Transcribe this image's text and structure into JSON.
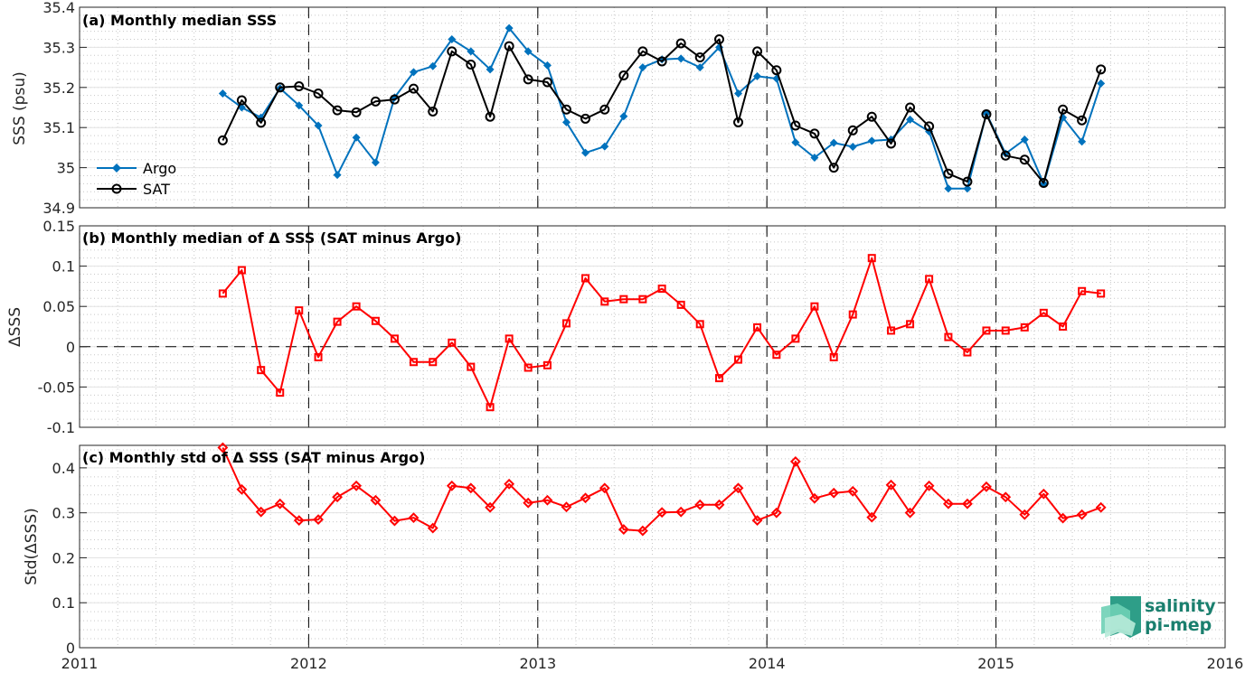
{
  "chart_data": [
    {
      "type": "line",
      "title": "(a) Monthly median SSS",
      "ylabel": "SSS (psu)",
      "xlim": [
        2011,
        2016
      ],
      "ylim": [
        34.9,
        35.4
      ],
      "yticks": [
        34.9,
        35,
        35.1,
        35.2,
        35.3,
        35.4
      ],
      "ytick_labels": [
        "34.9",
        "35",
        "35.1",
        "35.2",
        "35.3",
        "35.4"
      ],
      "grid": true,
      "legend_position": "lower-left",
      "x": [
        2011.625,
        2011.708,
        2011.792,
        2011.875,
        2011.958,
        2012.042,
        2012.125,
        2012.208,
        2012.292,
        2012.375,
        2012.458,
        2012.542,
        2012.625,
        2012.708,
        2012.792,
        2012.875,
        2012.958,
        2013.042,
        2013.125,
        2013.208,
        2013.292,
        2013.375,
        2013.458,
        2013.542,
        2013.625,
        2013.708,
        2013.792,
        2013.875,
        2013.958,
        2014.042,
        2014.125,
        2014.208,
        2014.292,
        2014.375,
        2014.458,
        2014.542,
        2014.625,
        2014.708,
        2014.792,
        2014.875,
        2014.958,
        2015.042,
        2015.125,
        2015.208,
        2015.292,
        2015.375,
        2015.458
      ],
      "series": [
        {
          "name": "Argo",
          "color": "#0072bd",
          "marker": "diamond-filled",
          "values": [
            35.185,
            35.15,
            35.125,
            35.198,
            35.155,
            35.105,
            34.982,
            35.075,
            35.013,
            35.175,
            35.238,
            35.253,
            35.32,
            35.29,
            35.245,
            35.348,
            35.29,
            35.255,
            35.113,
            35.037,
            35.053,
            35.128,
            35.25,
            35.27,
            35.272,
            35.25,
            35.3,
            35.185,
            35.228,
            35.222,
            35.063,
            35.025,
            35.062,
            35.052,
            35.067,
            35.07,
            35.12,
            35.09,
            34.948,
            34.948,
            35.135,
            35.035,
            35.07,
            34.96,
            35.125,
            35.065,
            35.21
          ]
        },
        {
          "name": "SAT",
          "color": "#000000",
          "marker": "circle-open",
          "values": [
            35.068,
            35.168,
            35.112,
            35.2,
            35.203,
            35.185,
            35.143,
            35.138,
            35.165,
            35.17,
            35.197,
            35.14,
            35.29,
            35.257,
            35.127,
            35.303,
            35.22,
            35.213,
            35.145,
            35.122,
            35.145,
            35.23,
            35.29,
            35.265,
            35.31,
            35.275,
            35.32,
            35.113,
            35.29,
            35.243,
            35.105,
            35.085,
            35.0,
            35.093,
            35.127,
            35.06,
            35.15,
            35.103,
            34.985,
            34.965,
            35.133,
            35.03,
            35.02,
            34.962,
            35.145,
            35.118,
            35.245
          ]
        }
      ]
    },
    {
      "type": "line",
      "title": "(b) Monthly median of Δ SSS (SAT minus Argo)",
      "ylabel": "ΔSSS",
      "xlim": [
        2011,
        2016
      ],
      "ylim": [
        -0.1,
        0.15
      ],
      "yticks": [
        -0.1,
        -0.05,
        0,
        0.05,
        0.1,
        0.15
      ],
      "ytick_labels": [
        "-0.1",
        "-0.05",
        "0",
        "0.05",
        "0.1",
        "0.15"
      ],
      "grid": true,
      "zero_line": true,
      "x": [
        2011.625,
        2011.708,
        2011.792,
        2011.875,
        2011.958,
        2012.042,
        2012.125,
        2012.208,
        2012.292,
        2012.375,
        2012.458,
        2012.542,
        2012.625,
        2012.708,
        2012.792,
        2012.875,
        2012.958,
        2013.042,
        2013.125,
        2013.208,
        2013.292,
        2013.375,
        2013.458,
        2013.542,
        2013.625,
        2013.708,
        2013.792,
        2013.875,
        2013.958,
        2014.042,
        2014.125,
        2014.208,
        2014.292,
        2014.375,
        2014.458,
        2014.542,
        2014.625,
        2014.708,
        2014.792,
        2014.875,
        2014.958,
        2015.042,
        2015.125,
        2015.208,
        2015.292,
        2015.375,
        2015.458
      ],
      "series": [
        {
          "color": "#ff0000",
          "marker": "square-open",
          "values": [
            0.066,
            0.095,
            -0.029,
            -0.057,
            0.045,
            -0.013,
            0.031,
            0.05,
            0.032,
            0.01,
            -0.019,
            -0.019,
            0.005,
            -0.025,
            -0.075,
            0.01,
            -0.026,
            -0.023,
            0.029,
            0.085,
            0.056,
            0.059,
            0.059,
            0.072,
            0.052,
            0.028,
            -0.039,
            -0.016,
            0.024,
            -0.01,
            0.01,
            0.05,
            -0.013,
            0.04,
            0.11,
            0.02,
            0.028,
            0.084,
            0.012,
            -0.007,
            0.02,
            0.02,
            0.024,
            0.042,
            0.025,
            0.069,
            0.066
          ]
        }
      ]
    },
    {
      "type": "line",
      "title": "(c) Monthly std of Δ SSS (SAT minus Argo)",
      "ylabel": "Std(ΔSSS)",
      "xlim": [
        2011,
        2016
      ],
      "ylim": [
        0,
        0.45
      ],
      "yticks": [
        0,
        0.1,
        0.2,
        0.3,
        0.4
      ],
      "ytick_labels": [
        "0",
        "0.1",
        "0.2",
        "0.3",
        "0.4"
      ],
      "xticks": [
        2011,
        2012,
        2013,
        2014,
        2015,
        2016
      ],
      "xtick_labels": [
        "2011",
        "2012",
        "2013",
        "2014",
        "2015",
        "2016"
      ],
      "grid": true,
      "x": [
        2011.625,
        2011.708,
        2011.792,
        2011.875,
        2011.958,
        2012.042,
        2012.125,
        2012.208,
        2012.292,
        2012.375,
        2012.458,
        2012.542,
        2012.625,
        2012.708,
        2012.792,
        2012.875,
        2012.958,
        2013.042,
        2013.125,
        2013.208,
        2013.292,
        2013.375,
        2013.458,
        2013.542,
        2013.625,
        2013.708,
        2013.792,
        2013.875,
        2013.958,
        2014.042,
        2014.125,
        2014.208,
        2014.292,
        2014.375,
        2014.458,
        2014.542,
        2014.625,
        2014.708,
        2014.792,
        2014.875,
        2014.958,
        2015.042,
        2015.125,
        2015.208,
        2015.292,
        2015.375,
        2015.458
      ],
      "series": [
        {
          "color": "#ff0000",
          "marker": "diamond-open",
          "values": [
            0.445,
            0.352,
            0.302,
            0.32,
            0.283,
            0.285,
            0.335,
            0.36,
            0.328,
            0.282,
            0.289,
            0.266,
            0.36,
            0.355,
            0.312,
            0.364,
            0.322,
            0.328,
            0.313,
            0.333,
            0.355,
            0.263,
            0.26,
            0.301,
            0.302,
            0.318,
            0.318,
            0.355,
            0.283,
            0.3,
            0.414,
            0.332,
            0.344,
            0.348,
            0.29,
            0.362,
            0.3,
            0.36,
            0.32,
            0.32,
            0.358,
            0.335,
            0.296,
            0.342,
            0.288,
            0.296,
            0.312
          ]
        }
      ]
    }
  ],
  "logo": {
    "line1": "salinity",
    "line2": "pi-mep"
  }
}
